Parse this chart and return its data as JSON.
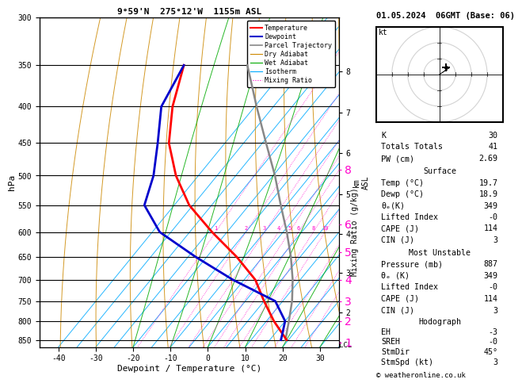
{
  "title_left": "9°59'N  275°12'W  1155m ASL",
  "title_right": "01.05.2024  06GMT (Base: 06)",
  "xlabel": "Dewpoint / Temperature (°C)",
  "ylabel_left": "hPa",
  "pressure_levels": [
    300,
    350,
    400,
    450,
    500,
    550,
    600,
    650,
    700,
    750,
    800,
    850
  ],
  "temp_xlim": [
    -45,
    35
  ],
  "pmin": 300,
  "pmax": 870,
  "skew": 45,
  "km_ticks": [
    8,
    7,
    6,
    5,
    4,
    3,
    2
  ],
  "km_pressures": [
    357,
    408,
    465,
    531,
    604,
    685,
    777
  ],
  "mix_ratio_vals": [
    1,
    2,
    3,
    4,
    5,
    6,
    8,
    10,
    15,
    20,
    25
  ],
  "mix_label_p": 600,
  "isotherm_temps": [
    -40,
    -35,
    -30,
    -25,
    -20,
    -15,
    -10,
    -5,
    0,
    5,
    10,
    15,
    20,
    25,
    30,
    35
  ],
  "dry_adiabat_theta": [
    -30,
    -20,
    -10,
    0,
    10,
    20,
    30,
    40,
    50,
    60,
    70,
    80,
    90,
    100
  ],
  "wet_adiabat_T0s": [
    -20,
    -10,
    0,
    10,
    20,
    30
  ],
  "temperature_profile_T": [
    19.7,
    19.5,
    12.0,
    5.0,
    -2.0,
    -12.0,
    -24.0,
    -36.0,
    -46.0,
    -55.0,
    -62.0,
    -68.0
  ],
  "temperature_profile_P": [
    887,
    850,
    800,
    750,
    700,
    650,
    600,
    550,
    500,
    450,
    400,
    350
  ],
  "dewpoint_profile_T": [
    18.9,
    18.0,
    15.0,
    8.0,
    -8.0,
    -23.0,
    -38.0,
    -48.0,
    -52.0,
    -58.0,
    -65.0,
    -68.0
  ],
  "dewpoint_profile_P": [
    887,
    850,
    800,
    750,
    700,
    650,
    600,
    550,
    500,
    450,
    400,
    350
  ],
  "parcel_profile_T": [
    19.7,
    19.2,
    16.0,
    12.5,
    8.0,
    2.5,
    -4.0,
    -11.5,
    -19.5,
    -29.0,
    -39.5,
    -51.0
  ],
  "parcel_profile_P": [
    887,
    850,
    800,
    750,
    700,
    650,
    600,
    550,
    500,
    450,
    400,
    350
  ],
  "lcl_pressure": 857,
  "color_temp": "#ff0000",
  "color_dewpoint": "#0000cc",
  "color_parcel": "#888888",
  "color_dry_adiabat": "#cc8800",
  "color_wet_adiabat": "#00aa00",
  "color_isotherm": "#00aaff",
  "color_mixing_ratio": "#ff00cc",
  "background_color": "#ffffff",
  "hodograph_StmDir": 45,
  "hodograph_StmSpd": 3,
  "hodograph_EH": -3,
  "hodograph_SREH": 0,
  "stats": {
    "K": 30,
    "Totals_Totals": 41,
    "PW_cm": 2.69,
    "Surface_Temp": 19.7,
    "Surface_Dewp": 18.9,
    "Surface_theta_e": 349,
    "Surface_LiftedIndex": 0,
    "Surface_CAPE": 114,
    "Surface_CIN": 3,
    "MU_Pressure": 887,
    "MU_theta_e": 349,
    "MU_LiftedIndex": 0,
    "MU_CAPE": 114,
    "MU_CIN": 3
  }
}
